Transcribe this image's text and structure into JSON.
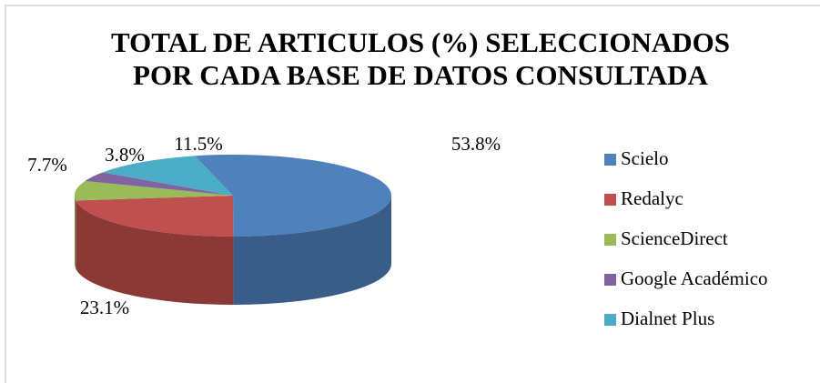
{
  "chart_data": {
    "type": "pie3d",
    "title": [
      "TOTAL DE ARTICULOS (%) SELECCIONADOS",
      "POR CADA BASE DE DATOS CONSULTADA"
    ],
    "categories": [
      "Scielo",
      "Redalyc",
      "ScienceDirect",
      "Google Académico",
      "Dialnet Plus"
    ],
    "values": [
      53.8,
      23.1,
      7.7,
      3.8,
      11.5
    ],
    "value_labels": [
      "53.8%",
      "23.1%",
      "7.7%",
      "3.8%",
      "11.5%"
    ],
    "colors": [
      "#4f81bd",
      "#c0504d",
      "#9bbb59",
      "#8064a2",
      "#4bacc6"
    ],
    "legend": "right"
  }
}
